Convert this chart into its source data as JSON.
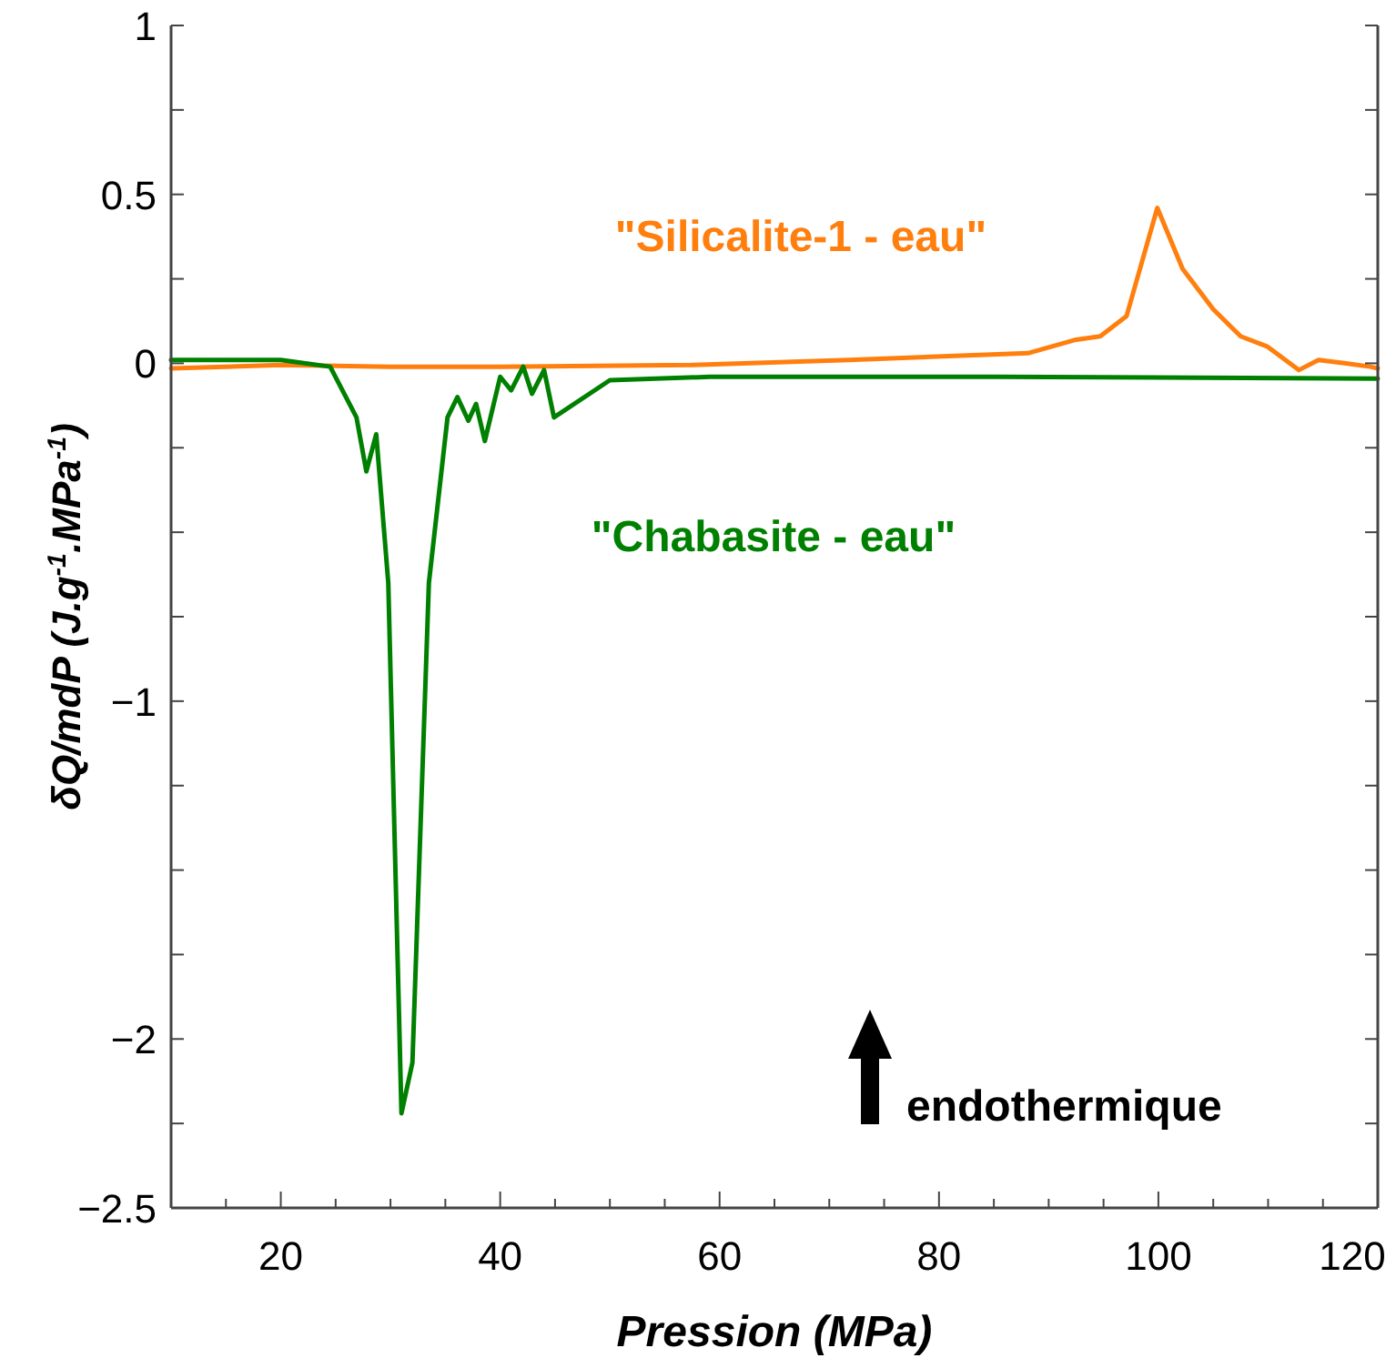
{
  "chart_data": {
    "type": "line",
    "xlabel": "Pression (MPa)",
    "ylabel": "δQ/mdP (J.g$^{-1}$.MPa$^{-1}$)",
    "xlim": [
      10,
      120
    ],
    "xticks": [
      {
        "value": 15,
        "label": null
      },
      20,
      {
        "value": 25,
        "label": null
      },
      {
        "value": 30,
        "label": null
      },
      {
        "value": 35,
        "label": null
      },
      40,
      {
        "value": 45,
        "label": null
      },
      {
        "value": 50,
        "label": null
      },
      {
        "value": 55,
        "label": null
      },
      60,
      {
        "value": 65,
        "label": null
      },
      {
        "value": 70,
        "label": null
      },
      {
        "value": 75,
        "label": null
      },
      80,
      {
        "value": 85,
        "label": null
      },
      {
        "value": 90,
        "label": null
      },
      {
        "value": 95,
        "label": null
      },
      100,
      {
        "value": 105,
        "label": null
      },
      {
        "value": 110,
        "label": null
      },
      {
        "value": 115,
        "label": null
      },
      120
    ],
    "ylim": [
      -2.5,
      1
    ],
    "yticks": [
      {
        "value": -2.5,
        "label": "−2.5"
      },
      {
        "value": -2.25,
        "label": null
      },
      {
        "value": -2,
        "label": "−2"
      },
      {
        "value": -1.75,
        "label": null
      },
      {
        "value": -1.5,
        "label": null
      },
      {
        "value": -1.25,
        "label": null
      },
      {
        "value": -1,
        "label": "−1"
      },
      {
        "value": -0.75,
        "label": null
      },
      {
        "value": -0.5,
        "label": null
      },
      {
        "value": -0.25,
        "label": null
      },
      0,
      {
        "value": 0.25,
        "label": null
      },
      0.5,
      {
        "value": 0.75,
        "label": null
      },
      1
    ],
    "grid": false,
    "marker": "none",
    "line_style": "solid",
    "series": [
      {
        "name": "\"Silicalite-1 - eau\"",
        "color": "#ff7f0e",
        "x": [
          10,
          20,
          30,
          40,
          57.4,
          71.8,
          88.1,
          92.5,
          94.7,
          97.1,
          99.9,
          102.2,
          105,
          107.5,
          109.9,
          112.8,
          114.6,
          117.1,
          119.3,
          120
        ],
        "values": [
          -0.015,
          -0.005,
          -0.01,
          -0.01,
          -0.005,
          0.01,
          0.03,
          0.07,
          0.08,
          0.14,
          0.46,
          0.28,
          0.16,
          0.08,
          0.05,
          -0.02,
          0.01,
          0.0,
          -0.01,
          -0.015
        ]
      },
      {
        "name": "\"Chabasite - eau\"",
        "color": "#008000",
        "x": [
          10,
          20,
          24.5,
          26.9,
          27.8,
          28.7,
          29.8,
          31.0,
          32.0,
          33.5,
          35.2,
          36.1,
          37.1,
          37.8,
          38.6,
          40.0,
          41.0,
          42.1,
          42.9,
          44.0,
          44.9,
          50.0,
          59.1,
          85,
          120
        ],
        "values": [
          0.01,
          0.01,
          -0.01,
          -0.16,
          -0.32,
          -0.21,
          -0.65,
          -2.22,
          -2.07,
          -0.65,
          -0.16,
          -0.1,
          -0.17,
          -0.12,
          -0.23,
          -0.04,
          -0.08,
          -0.01,
          -0.09,
          -0.02,
          -0.16,
          -0.05,
          -0.04,
          -0.04,
          -0.045
        ]
      }
    ],
    "annotations": [
      "endothermique"
    ]
  }
}
